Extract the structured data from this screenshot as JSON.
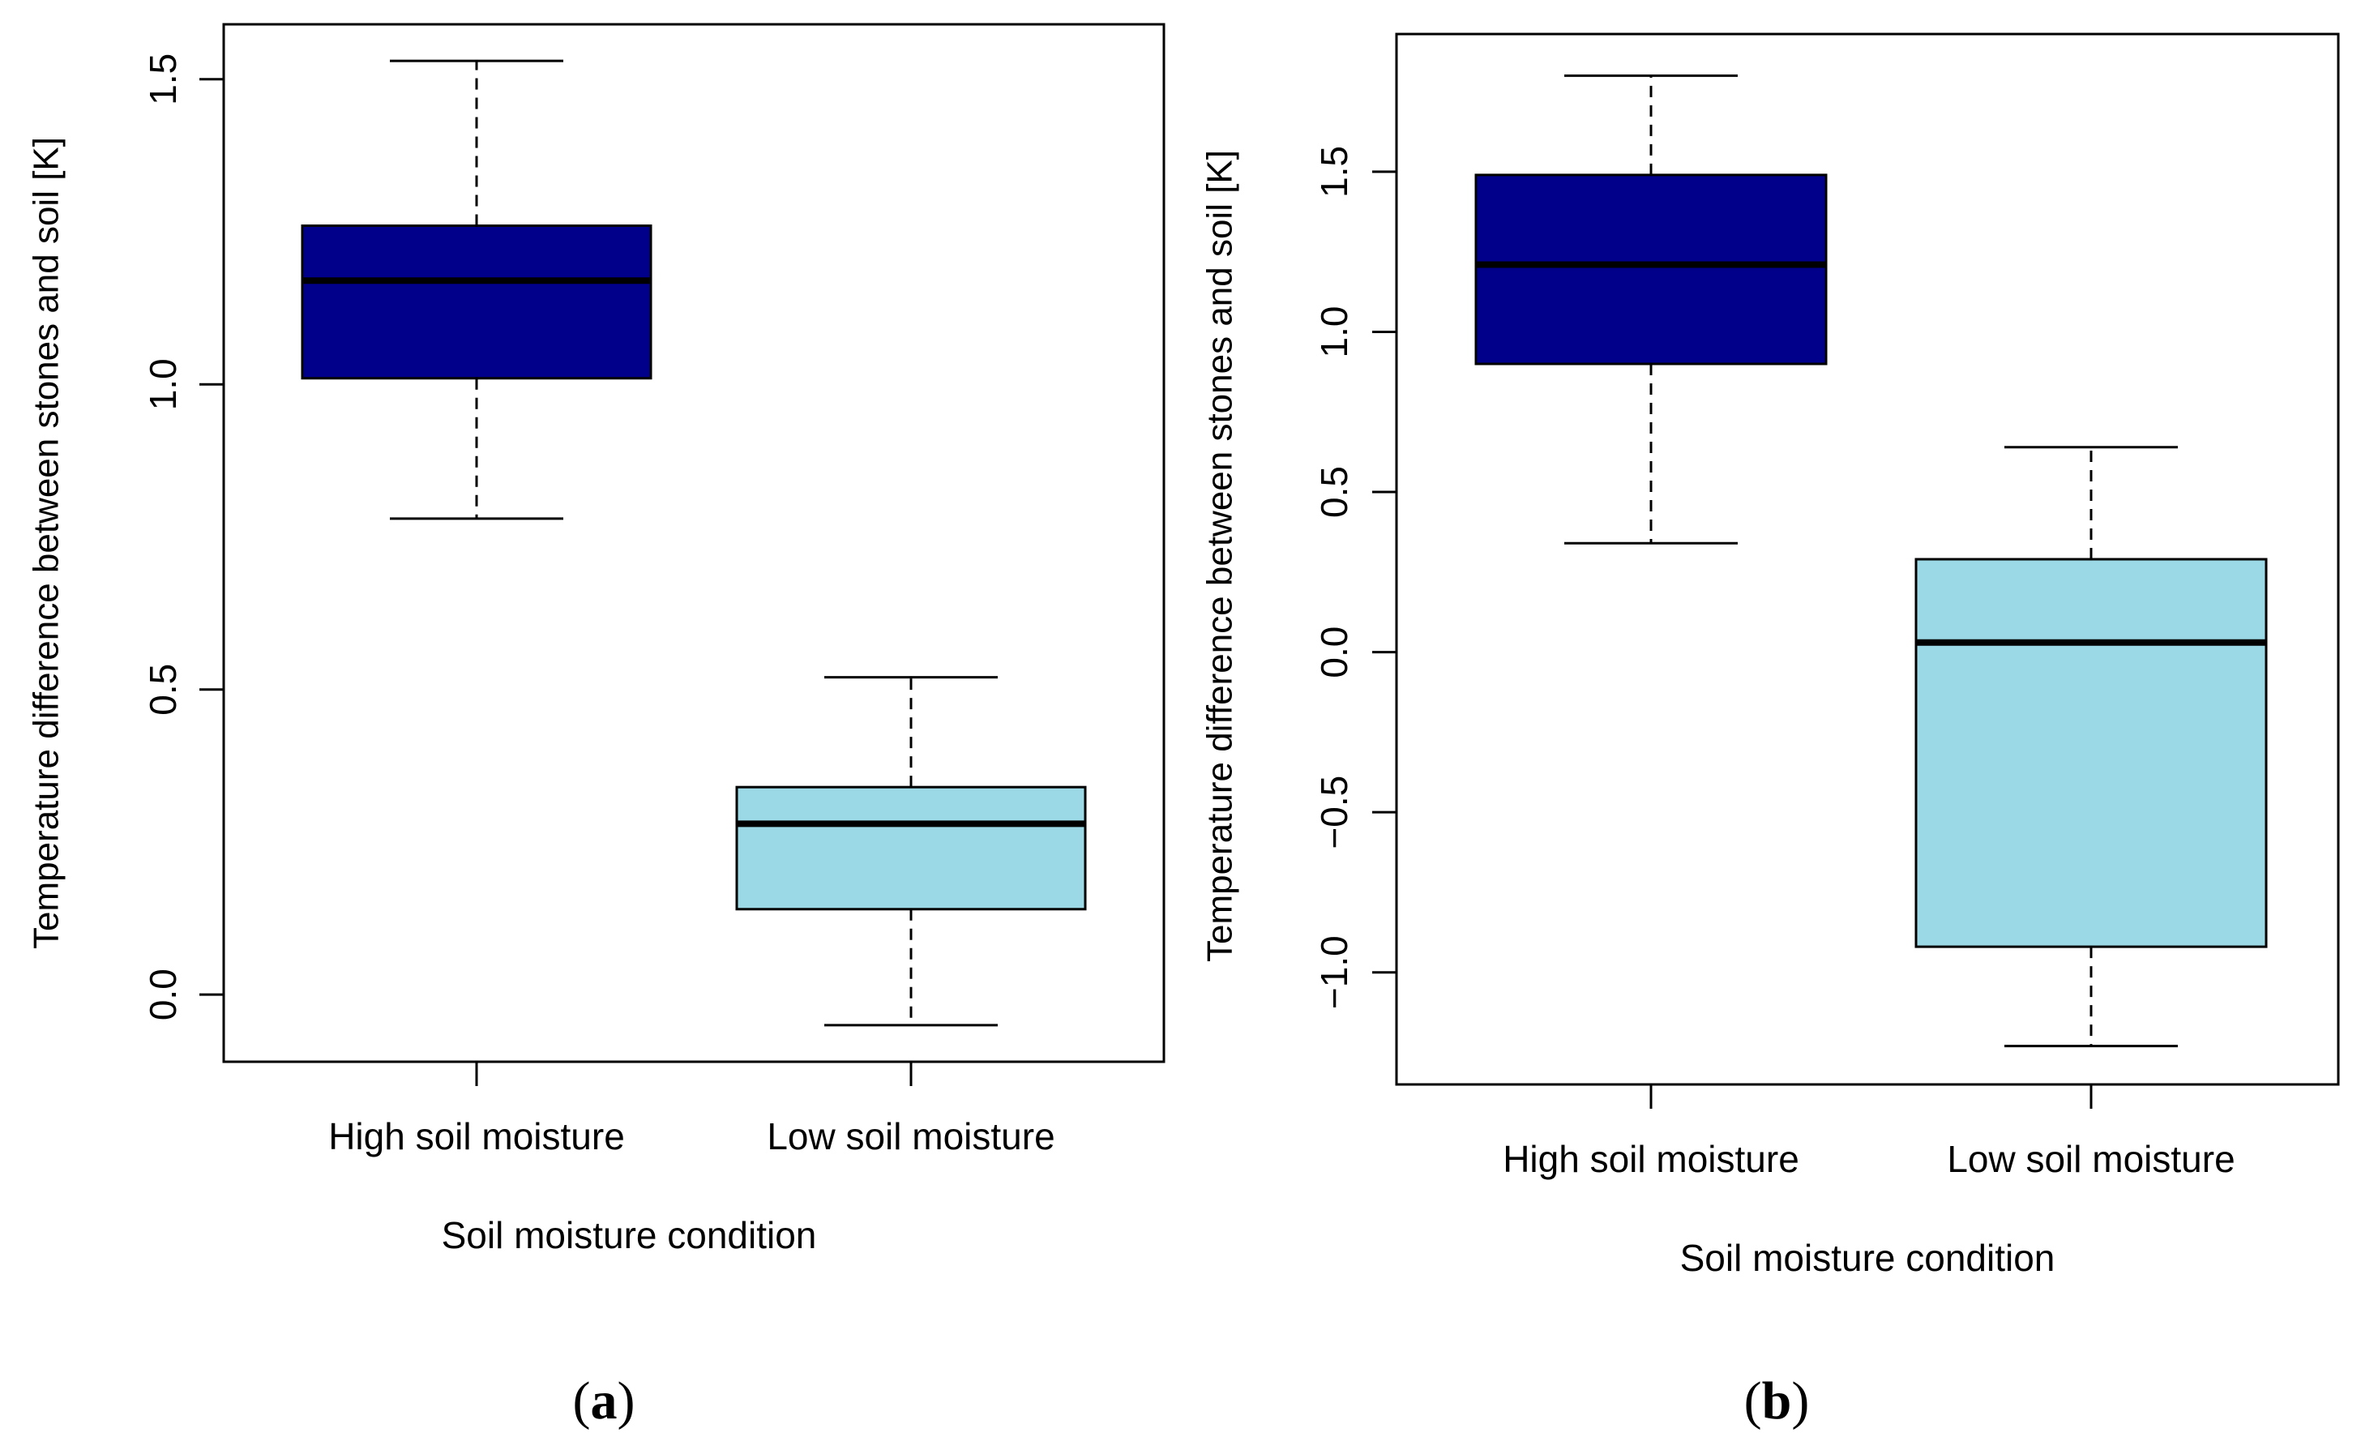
{
  "chart_data": [
    {
      "type": "box",
      "panel_label": "(a)",
      "ylabel": "Temperature difference between stones and soil [K]",
      "xlabel": "Soil moisture condition",
      "categories": [
        "High soil moisture",
        "Low soil moisture"
      ],
      "ylim": [
        -0.11,
        1.59
      ],
      "yticks": [
        0.0,
        0.5,
        1.0,
        1.5
      ],
      "ytick_labels": [
        "0.0",
        "0.5",
        "1.0",
        "1.5"
      ],
      "boxes": [
        {
          "category": "High soil moisture",
          "whisker_low": 0.78,
          "q1": 1.01,
          "median": 1.17,
          "q3": 1.26,
          "whisker_high": 1.53,
          "color": "#00008b"
        },
        {
          "category": "Low soil moisture",
          "whisker_low": -0.05,
          "q1": 0.14,
          "median": 0.28,
          "q3": 0.34,
          "whisker_high": 0.52,
          "color": "#9ad9e5"
        }
      ]
    },
    {
      "type": "box",
      "panel_label": "(b)",
      "ylabel": "Temperature difference between stones and soil [K]",
      "xlabel": "Soil moisture condition",
      "categories": [
        "High soil moisture",
        "Low soil moisture"
      ],
      "ylim": [
        -1.35,
        1.93
      ],
      "yticks": [
        -1.0,
        -0.5,
        0.0,
        0.5,
        1.0,
        1.5
      ],
      "ytick_labels": [
        "−1.0",
        "−0.5",
        "0.0",
        "0.5",
        "1.0",
        "1.5"
      ],
      "boxes": [
        {
          "category": "High soil moisture",
          "whisker_low": 0.34,
          "q1": 0.9,
          "median": 1.21,
          "q3": 1.49,
          "whisker_high": 1.8,
          "color": "#00008b"
        },
        {
          "category": "Low soil moisture",
          "whisker_low": -1.23,
          "q1": -0.92,
          "median": 0.03,
          "q3": 0.29,
          "whisker_high": 0.64,
          "color": "#9ad9e5"
        }
      ]
    }
  ]
}
